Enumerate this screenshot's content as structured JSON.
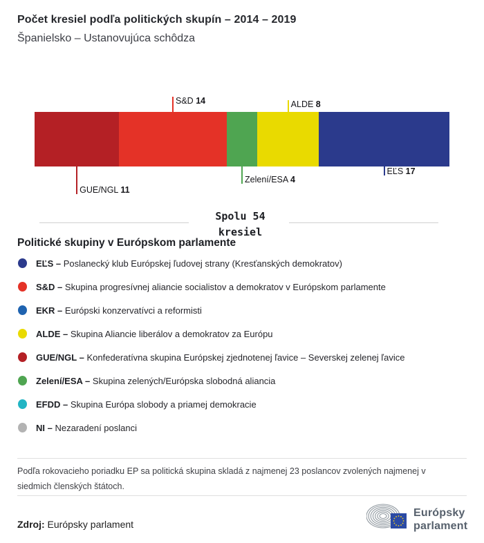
{
  "header": {
    "title": "Počet kresiel podľa politických skupín – 2014 – 2019",
    "subtitle": "Španielsko – Ustanovujúca schôdza"
  },
  "chart_data": {
    "type": "bar",
    "orientation": "horizontal-stacked",
    "title": "Počet kresiel podľa politických skupín – 2014 – 2019",
    "subtitle": "Španielsko – Ustanovujúca schôdza",
    "total_seats": 54,
    "total_label": "Spolu 54 kresiel",
    "segments": [
      {
        "group": "GUE/NGL",
        "seats": 11,
        "color": "#b42025",
        "label_side": "below",
        "line_len": 40
      },
      {
        "group": "S&D",
        "seats": 14,
        "color": "#e43227",
        "label_side": "above",
        "line_len": 22
      },
      {
        "group": "Zelení/ESA",
        "seats": 4,
        "color": "#4fa551",
        "label_side": "below",
        "line_len": 25
      },
      {
        "group": "ALDE",
        "seats": 8,
        "color": "#e9da00",
        "label_side": "above",
        "line_len": 17
      },
      {
        "group": "EĽS",
        "seats": 17,
        "color": "#2b3a8c",
        "label_side": "below",
        "line_len": 13
      }
    ]
  },
  "total": {
    "line1": "Spolu 54",
    "line2": "kresiel"
  },
  "legend": {
    "heading": "Politické skupiny v Európskom parlamente",
    "items": [
      {
        "abbr": "EĽS –",
        "desc": "Poslanecký klub Európskej ľudovej strany (Kresťanských demokratov)",
        "color": "#2b3a8c"
      },
      {
        "abbr": "S&D –",
        "desc": "Skupina progresívnej aliancie socialistov a demokratov v Európskom parlamente",
        "color": "#e43227"
      },
      {
        "abbr": "EKR –",
        "desc": "Európski konzervatívci a reformisti",
        "color": "#1f63b0"
      },
      {
        "abbr": "ALDE –",
        "desc": "Skupina Aliancie liberálov a demokratov za Európu",
        "color": "#e9da00"
      },
      {
        "abbr": "GUE/NGL –",
        "desc": "Konfederatívna skupina Európskej zjednotenej ľavice – Severskej zelenej ľavice",
        "color": "#b42025"
      },
      {
        "abbr": "Zelení/ESA –",
        "desc": "Skupina zelených/Európska slobodná aliancia",
        "color": "#4fa551"
      },
      {
        "abbr": "EFDD –",
        "desc": "Skupina Európa slobody a priamej demokracie",
        "color": "#22b5c4"
      },
      {
        "abbr": "NI –",
        "desc": "Nezaradení poslanci",
        "color": "#b3b3b3"
      }
    ]
  },
  "footnote": {
    "text": "Podľa rokovacieho poriadku EP sa politická skupina skladá z najmenej 23 poslancov zvolených najmenej v siedmich členských štátoch."
  },
  "source": {
    "label": "Zdroj:",
    "text": "Európsky parlament"
  },
  "logo": {
    "line1": "Európsky",
    "line2": "parlament",
    "flag_color": "#2b4aa5",
    "star_color": "#f7d117",
    "arc_color": "#9099a0"
  }
}
